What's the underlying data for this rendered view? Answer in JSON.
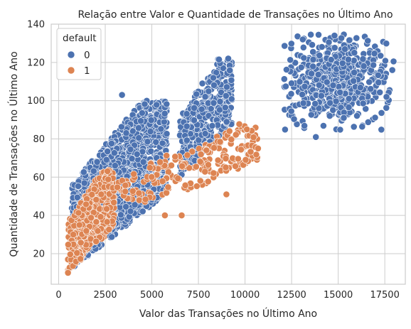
{
  "chart_data": {
    "type": "scatter",
    "title": "Relação entre Valor e Quantidade de Transações no Último Ano",
    "xlabel": "Valor das Transações no Último Ano",
    "ylabel": "Quantidade de Transações no Último Ano",
    "xlim": [
      -400,
      18600
    ],
    "ylim": [
      4,
      140
    ],
    "xticks": [
      0,
      2500,
      5000,
      7500,
      10000,
      12500,
      15000,
      17500
    ],
    "yticks": [
      20,
      40,
      60,
      80,
      100,
      120,
      140
    ],
    "grid": true,
    "legend": {
      "title": "default",
      "placement": "top-left"
    },
    "series": [
      {
        "name": "0",
        "color": "#4c72b0",
        "clusters": [
          {
            "x_range": [
              700,
              5800
            ],
            "y_range": [
              12,
              100
            ],
            "count": 1400
          },
          {
            "x_range": [
              6500,
              9300
            ],
            "y_range": [
              60,
              122
            ],
            "count": 420
          },
          {
            "center": [
              15000,
              110
            ],
            "spread": [
              1300,
              11
            ],
            "count": 650
          }
        ]
      },
      {
        "name": "1",
        "color": "#dd8452",
        "clusters": [
          {
            "x_range": [
              500,
              3000
            ],
            "y_range": [
              10,
              64
            ],
            "count": 450
          },
          {
            "x_range": [
              3000,
              6500
            ],
            "y_range": [
              40,
              72
            ],
            "count": 80
          },
          {
            "x_range": [
              6500,
              10700
            ],
            "y_range": [
              51,
              88
            ],
            "count": 130
          }
        ]
      }
    ],
    "annotated_points": [
      {
        "series": "0",
        "x": 14800,
        "y": 134
      },
      {
        "series": "0",
        "x": 13100,
        "y": 132
      },
      {
        "series": "0",
        "x": 17900,
        "y": 116
      },
      {
        "series": "0",
        "x": 9100,
        "y": 122
      },
      {
        "series": "0",
        "x": 3400,
        "y": 103
      },
      {
        "series": "0",
        "x": 13800,
        "y": 81
      },
      {
        "series": "1",
        "x": 10100,
        "y": 85
      },
      {
        "series": "1",
        "x": 10700,
        "y": 75
      },
      {
        "series": "1",
        "x": 5700,
        "y": 40
      },
      {
        "series": "1",
        "x": 6600,
        "y": 40
      },
      {
        "series": "1",
        "x": 9000,
        "y": 51
      },
      {
        "series": "1",
        "x": 500,
        "y": 10
      }
    ]
  }
}
